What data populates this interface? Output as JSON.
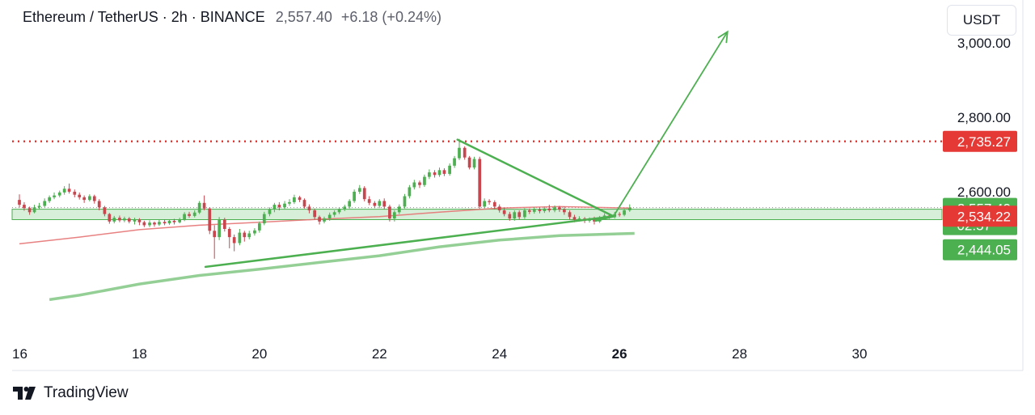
{
  "header": {
    "symbol": "Ethereum / TetherUS · 2h · BINANCE",
    "price": "2,557.40",
    "change": "+6.18 (+0.24%)"
  },
  "currency_button": "USDT",
  "footer": {
    "brand": "TradingView"
  },
  "colors": {
    "up": "#4caf50",
    "down": "#c8474f",
    "resistance": "#e53935",
    "trend": "#4caf50",
    "ma_red": "#e57373",
    "ma_green": "#81c784",
    "zone_fill": "#d7eed8"
  },
  "chart_data": {
    "type": "candlestick",
    "symbol": "ETHUSDT",
    "timeframe": "2h",
    "x_ticks": [
      "16",
      "18",
      "20",
      "22",
      "24",
      "26",
      "28",
      "30"
    ],
    "x_range_days": [
      16,
      31.5
    ],
    "y_ticks": [
      "2,600.00",
      "2,800.00",
      "3,000.00"
    ],
    "y_range": [
      2300,
      3040
    ],
    "resistance_level": 2735.27,
    "support_zone": [
      2525,
      2553
    ],
    "price_labels": [
      {
        "text": "2,735.27",
        "value": 2735.27,
        "color": "#e53935"
      },
      {
        "text": "2,557.40",
        "value": 2557.4,
        "color": "#4caf50",
        "sub": "02:57"
      },
      {
        "text": "2,534.22",
        "value": 2534.22,
        "color": "#e53935"
      },
      {
        "text": "2,444.05",
        "value": 2444.05,
        "color": "#4caf50"
      }
    ],
    "current_price": 2557.4,
    "ma_red": [
      [
        16,
        2460
      ],
      [
        17,
        2478
      ],
      [
        18,
        2498
      ],
      [
        19,
        2510
      ],
      [
        20,
        2518
      ],
      [
        21,
        2526
      ],
      [
        22,
        2533
      ],
      [
        23,
        2545
      ],
      [
        24,
        2556
      ],
      [
        25,
        2560
      ],
      [
        26.2,
        2556
      ]
    ],
    "ma_green": [
      [
        16.5,
        2310
      ],
      [
        17,
        2322
      ],
      [
        18,
        2352
      ],
      [
        19,
        2375
      ],
      [
        20,
        2392
      ],
      [
        21,
        2410
      ],
      [
        22,
        2428
      ],
      [
        23,
        2452
      ],
      [
        24,
        2470
      ],
      [
        25,
        2482
      ],
      [
        26.25,
        2488
      ]
    ],
    "trendlines": [
      {
        "from": [
          19.1,
          2398
        ],
        "to": [
          25.9,
          2534
        ]
      },
      {
        "from": [
          23.3,
          2740
        ],
        "to": [
          25.9,
          2534
        ]
      },
      {
        "from": [
          25.6,
          2522
        ],
        "to": [
          25.9,
          2534
        ]
      }
    ],
    "arrow": {
      "from": [
        25.9,
        2534
      ],
      "to": [
        27.8,
        3030
      ]
    },
    "candles": [
      [
        16.0,
        2578,
        2565,
        2593,
        2558
      ],
      [
        16.08,
        2565,
        2556,
        2572,
        2549
      ],
      [
        16.17,
        2556,
        2545,
        2560,
        2538
      ],
      [
        16.25,
        2545,
        2558,
        2565,
        2542
      ],
      [
        16.33,
        2558,
        2562,
        2570,
        2552
      ],
      [
        16.42,
        2562,
        2575,
        2582,
        2558
      ],
      [
        16.5,
        2575,
        2585,
        2590,
        2570
      ],
      [
        16.58,
        2585,
        2590,
        2598,
        2580
      ],
      [
        16.67,
        2590,
        2598,
        2603,
        2585
      ],
      [
        16.75,
        2598,
        2608,
        2615,
        2592
      ],
      [
        16.83,
        2608,
        2600,
        2622,
        2595
      ],
      [
        16.92,
        2600,
        2592,
        2606,
        2585
      ],
      [
        17.0,
        2592,
        2585,
        2598,
        2579
      ],
      [
        17.08,
        2585,
        2578,
        2590,
        2570
      ],
      [
        17.17,
        2578,
        2588,
        2593,
        2574
      ],
      [
        17.25,
        2588,
        2575,
        2592,
        2568
      ],
      [
        17.33,
        2575,
        2558,
        2580,
        2550
      ],
      [
        17.42,
        2558,
        2540,
        2562,
        2534
      ],
      [
        17.5,
        2540,
        2520,
        2543,
        2514
      ],
      [
        17.58,
        2520,
        2530,
        2535,
        2515
      ],
      [
        17.67,
        2530,
        2523,
        2536,
        2518
      ],
      [
        17.75,
        2523,
        2528,
        2533,
        2518
      ],
      [
        17.83,
        2528,
        2520,
        2532,
        2515
      ],
      [
        17.92,
        2520,
        2525,
        2530,
        2512
      ],
      [
        18.0,
        2525,
        2518,
        2529,
        2510
      ],
      [
        18.08,
        2518,
        2510,
        2522,
        2505
      ],
      [
        18.17,
        2510,
        2517,
        2523,
        2505
      ],
      [
        18.25,
        2517,
        2512,
        2520,
        2506
      ],
      [
        18.33,
        2512,
        2519,
        2524,
        2508
      ],
      [
        18.42,
        2519,
        2515,
        2525,
        2510
      ],
      [
        18.5,
        2515,
        2522,
        2526,
        2511
      ],
      [
        18.58,
        2522,
        2518,
        2527,
        2512
      ],
      [
        18.67,
        2518,
        2525,
        2530,
        2515
      ],
      [
        18.75,
        2525,
        2540,
        2545,
        2521
      ],
      [
        18.83,
        2540,
        2535,
        2546,
        2530
      ],
      [
        18.92,
        2535,
        2544,
        2550,
        2531
      ],
      [
        19.0,
        2544,
        2570,
        2575,
        2540
      ],
      [
        19.08,
        2570,
        2555,
        2590,
        2550
      ],
      [
        19.17,
        2555,
        2495,
        2558,
        2486
      ],
      [
        19.25,
        2495,
        2478,
        2510,
        2420
      ],
      [
        19.33,
        2478,
        2525,
        2532,
        2470
      ],
      [
        19.42,
        2525,
        2500,
        2530,
        2493
      ],
      [
        19.5,
        2500,
        2478,
        2505,
        2448
      ],
      [
        19.58,
        2478,
        2462,
        2485,
        2440
      ],
      [
        19.67,
        2462,
        2490,
        2500,
        2456
      ],
      [
        19.75,
        2490,
        2478,
        2495,
        2466
      ],
      [
        19.83,
        2478,
        2488,
        2495,
        2472
      ],
      [
        19.92,
        2488,
        2496,
        2502,
        2482
      ],
      [
        20.0,
        2496,
        2515,
        2520,
        2490
      ],
      [
        20.08,
        2515,
        2540,
        2546,
        2510
      ],
      [
        20.17,
        2540,
        2552,
        2558,
        2534
      ],
      [
        20.25,
        2552,
        2565,
        2570,
        2545
      ],
      [
        20.33,
        2565,
        2558,
        2572,
        2550
      ],
      [
        20.42,
        2558,
        2568,
        2575,
        2552
      ],
      [
        20.5,
        2568,
        2572,
        2580,
        2562
      ],
      [
        20.58,
        2572,
        2585,
        2592,
        2567
      ],
      [
        20.67,
        2585,
        2578,
        2589,
        2572
      ],
      [
        20.75,
        2578,
        2560,
        2582,
        2555
      ],
      [
        20.83,
        2560,
        2550,
        2566,
        2542
      ],
      [
        20.92,
        2550,
        2532,
        2555,
        2525
      ],
      [
        21.0,
        2532,
        2520,
        2536,
        2512
      ],
      [
        21.08,
        2520,
        2528,
        2533,
        2515
      ],
      [
        21.17,
        2528,
        2538,
        2544,
        2522
      ],
      [
        21.25,
        2538,
        2545,
        2550,
        2532
      ],
      [
        21.33,
        2545,
        2553,
        2558,
        2540
      ],
      [
        21.42,
        2553,
        2560,
        2565,
        2548
      ],
      [
        21.5,
        2560,
        2575,
        2580,
        2555
      ],
      [
        21.58,
        2575,
        2600,
        2606,
        2570
      ],
      [
        21.67,
        2600,
        2610,
        2618,
        2594
      ],
      [
        21.75,
        2610,
        2580,
        2615,
        2574
      ],
      [
        21.83,
        2580,
        2570,
        2588,
        2564
      ],
      [
        21.92,
        2570,
        2562,
        2575,
        2556
      ],
      [
        22.0,
        2562,
        2575,
        2580,
        2556
      ],
      [
        22.08,
        2575,
        2560,
        2582,
        2553
      ],
      [
        22.17,
        2560,
        2528,
        2565,
        2520
      ],
      [
        22.25,
        2528,
        2545,
        2550,
        2520
      ],
      [
        22.33,
        2545,
        2560,
        2566,
        2540
      ],
      [
        22.42,
        2560,
        2588,
        2594,
        2555
      ],
      [
        22.5,
        2588,
        2612,
        2618,
        2582
      ],
      [
        22.58,
        2612,
        2625,
        2632,
        2606
      ],
      [
        22.67,
        2625,
        2618,
        2630,
        2610
      ],
      [
        22.75,
        2618,
        2640,
        2646,
        2613
      ],
      [
        22.83,
        2640,
        2652,
        2660,
        2634
      ],
      [
        22.92,
        2652,
        2645,
        2658,
        2638
      ],
      [
        23.0,
        2645,
        2658,
        2665,
        2640
      ],
      [
        23.08,
        2658,
        2648,
        2663,
        2642
      ],
      [
        23.17,
        2648,
        2670,
        2676,
        2643
      ],
      [
        23.25,
        2670,
        2690,
        2696,
        2664
      ],
      [
        23.33,
        2690,
        2718,
        2742,
        2685
      ],
      [
        23.42,
        2718,
        2692,
        2722,
        2686
      ],
      [
        23.5,
        2692,
        2665,
        2696,
        2660
      ],
      [
        23.58,
        2665,
        2688,
        2694,
        2660
      ],
      [
        23.67,
        2688,
        2560,
        2694,
        2554
      ],
      [
        23.75,
        2560,
        2575,
        2582,
        2555
      ],
      [
        23.83,
        2575,
        2572,
        2580,
        2565
      ],
      [
        23.92,
        2572,
        2560,
        2577,
        2553
      ],
      [
        24.0,
        2560,
        2550,
        2566,
        2544
      ],
      [
        24.08,
        2550,
        2540,
        2557,
        2534
      ],
      [
        24.17,
        2540,
        2528,
        2546,
        2522
      ],
      [
        24.25,
        2528,
        2545,
        2550,
        2522
      ],
      [
        24.33,
        2545,
        2532,
        2550,
        2526
      ],
      [
        24.42,
        2532,
        2550,
        2556,
        2527
      ],
      [
        24.5,
        2550,
        2546,
        2555,
        2540
      ],
      [
        24.58,
        2546,
        2552,
        2558,
        2541
      ],
      [
        24.67,
        2552,
        2548,
        2558,
        2542
      ],
      [
        24.75,
        2548,
        2555,
        2560,
        2543
      ],
      [
        24.83,
        2555,
        2550,
        2565,
        2545
      ],
      [
        24.92,
        2550,
        2558,
        2563,
        2545
      ],
      [
        25.0,
        2558,
        2552,
        2562,
        2546
      ],
      [
        25.08,
        2552,
        2545,
        2560,
        2538
      ],
      [
        25.17,
        2545,
        2532,
        2550,
        2526
      ],
      [
        25.25,
        2532,
        2525,
        2538,
        2518
      ],
      [
        25.33,
        2525,
        2528,
        2534,
        2520
      ],
      [
        25.42,
        2528,
        2522,
        2532,
        2516
      ],
      [
        25.5,
        2522,
        2527,
        2531,
        2517
      ],
      [
        25.58,
        2527,
        2520,
        2533,
        2512
      ],
      [
        25.67,
        2520,
        2528,
        2535,
        2516
      ],
      [
        25.75,
        2528,
        2536,
        2542,
        2524
      ],
      [
        25.83,
        2536,
        2532,
        2540,
        2527
      ],
      [
        25.92,
        2532,
        2540,
        2546,
        2528
      ],
      [
        26.0,
        2540,
        2538,
        2545,
        2533
      ],
      [
        26.08,
        2538,
        2550,
        2555,
        2534
      ],
      [
        26.17,
        2550,
        2557,
        2566,
        2546
      ]
    ]
  }
}
